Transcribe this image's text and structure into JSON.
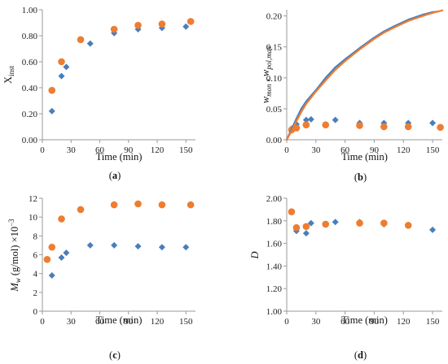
{
  "colors": {
    "blue": "#4A7EBB",
    "orange": "#ED7D31",
    "axis": "#9a9a9a",
    "text": "#222222"
  },
  "chart_data": [
    {
      "id": "a",
      "type": "scatter",
      "caption": "(a)",
      "xlabel": "Time (min)",
      "ylabel": "X",
      "ylabel_sub": "inst",
      "xlim": [
        0,
        160
      ],
      "ylim": [
        0,
        1
      ],
      "xticks": [
        0,
        30,
        60,
        90,
        120,
        150
      ],
      "yticks": [
        0,
        0.2,
        0.4,
        0.6,
        0.8,
        1.0
      ],
      "ytick_labels": [
        "0.00",
        "0.20",
        "0.40",
        "0.60",
        "0.80",
        "1.00"
      ],
      "series": [
        {
          "marker": "diamond",
          "color": "#4A7EBB",
          "x": [
            10,
            20,
            25,
            50,
            75,
            100,
            125,
            150
          ],
          "y": [
            0.22,
            0.49,
            0.56,
            0.74,
            0.82,
            0.85,
            0.86,
            0.87
          ]
        },
        {
          "marker": "circle",
          "color": "#ED7D31",
          "x": [
            10,
            20,
            40,
            75,
            100,
            125,
            155
          ],
          "y": [
            0.38,
            0.6,
            0.77,
            0.85,
            0.88,
            0.89,
            0.91
          ]
        }
      ]
    },
    {
      "id": "b",
      "type": "scatter",
      "caption": "(b)",
      "xlabel": "Time (min)",
      "ylabel": "w",
      "ylabel_sub": "mon",
      "ylabel_mid": " ,  w",
      "ylabel_sub2": "pol,max",
      "xlim": [
        0,
        160
      ],
      "ylim": [
        0,
        0.21
      ],
      "xticks": [
        0,
        30,
        60,
        90,
        120,
        150
      ],
      "yticks": [
        0,
        0.05,
        0.1,
        0.15,
        0.2
      ],
      "ytick_labels": [
        "0.00",
        "0.05",
        "0.10",
        "0.15",
        "0.20"
      ],
      "series": [
        {
          "marker": "diamond",
          "color": "#4A7EBB",
          "x": [
            5,
            10,
            20,
            25,
            50,
            75,
            100,
            125,
            150
          ],
          "y": [
            0.018,
            0.025,
            0.032,
            0.033,
            0.032,
            0.027,
            0.027,
            0.027,
            0.027
          ]
        },
        {
          "marker": "circle",
          "color": "#ED7D31",
          "x": [
            5,
            10,
            20,
            40,
            75,
            100,
            125,
            158
          ],
          "y": [
            0.016,
            0.019,
            0.024,
            0.024,
            0.023,
            0.021,
            0.021,
            0.02
          ]
        },
        {
          "marker": "line",
          "color": "#4A7EBB",
          "x": [
            0,
            5,
            10,
            15,
            20,
            30,
            40,
            50,
            60,
            75,
            90,
            100,
            110,
            125,
            140,
            150,
            155
          ],
          "y": [
            0,
            0.017,
            0.034,
            0.05,
            0.062,
            0.08,
            0.1,
            0.117,
            0.13,
            0.148,
            0.165,
            0.175,
            0.183,
            0.194,
            0.202,
            0.206,
            0.207
          ]
        },
        {
          "marker": "line",
          "color": "#ED7D31",
          "x": [
            0,
            5,
            10,
            15,
            20,
            30,
            40,
            50,
            60,
            75,
            90,
            100,
            110,
            125,
            140,
            150,
            160
          ],
          "y": [
            0,
            0.014,
            0.03,
            0.045,
            0.058,
            0.078,
            0.096,
            0.113,
            0.127,
            0.146,
            0.163,
            0.173,
            0.181,
            0.192,
            0.2,
            0.205,
            0.209
          ]
        }
      ]
    },
    {
      "id": "c",
      "type": "scatter",
      "caption": "(c)",
      "xlabel": "Time (min)",
      "ylabel": "M",
      "ylabel_sub": "w",
      "ylabel_mid": " (g/mol) ×10",
      "ylabel_sup": "−3",
      "xlim": [
        0,
        160
      ],
      "ylim": [
        0,
        12
      ],
      "xticks": [
        0,
        30,
        60,
        90,
        120,
        150
      ],
      "yticks": [
        0,
        2,
        4,
        6,
        8,
        10,
        12
      ],
      "ytick_labels": [
        "0",
        "2",
        "4",
        "6",
        "8",
        "10",
        "12"
      ],
      "series": [
        {
          "marker": "diamond",
          "color": "#4A7EBB",
          "x": [
            10,
            20,
            25,
            50,
            75,
            100,
            125,
            150
          ],
          "y": [
            3.8,
            5.7,
            6.2,
            7.0,
            7.0,
            6.9,
            6.8,
            6.8
          ]
        },
        {
          "marker": "circle",
          "color": "#ED7D31",
          "x": [
            5,
            10,
            20,
            40,
            75,
            100,
            125,
            155
          ],
          "y": [
            5.5,
            6.8,
            9.8,
            10.8,
            11.3,
            11.4,
            11.3,
            11.3
          ]
        }
      ]
    },
    {
      "id": "d",
      "type": "scatter",
      "caption": "(d)",
      "xlabel": "Time (min)",
      "ylabel": "D",
      "xlim": [
        0,
        160
      ],
      "ylim": [
        1,
        2
      ],
      "xticks": [
        0,
        30,
        60,
        90,
        120,
        150
      ],
      "yticks": [
        1,
        1.2,
        1.4,
        1.6,
        1.8,
        2.0
      ],
      "ytick_labels": [
        "1.00",
        "1.20",
        "1.40",
        "1.60",
        "1.80",
        "2.00"
      ],
      "series": [
        {
          "marker": "diamond",
          "color": "#4A7EBB",
          "x": [
            10,
            20,
            25,
            50,
            75,
            100,
            125,
            150
          ],
          "y": [
            1.71,
            1.69,
            1.78,
            1.79,
            1.79,
            1.77,
            1.76,
            1.72
          ]
        },
        {
          "marker": "circle",
          "color": "#ED7D31",
          "x": [
            5,
            10,
            20,
            40,
            75,
            100,
            125
          ],
          "y": [
            1.88,
            1.74,
            1.75,
            1.77,
            1.78,
            1.78,
            1.76
          ]
        }
      ]
    }
  ]
}
